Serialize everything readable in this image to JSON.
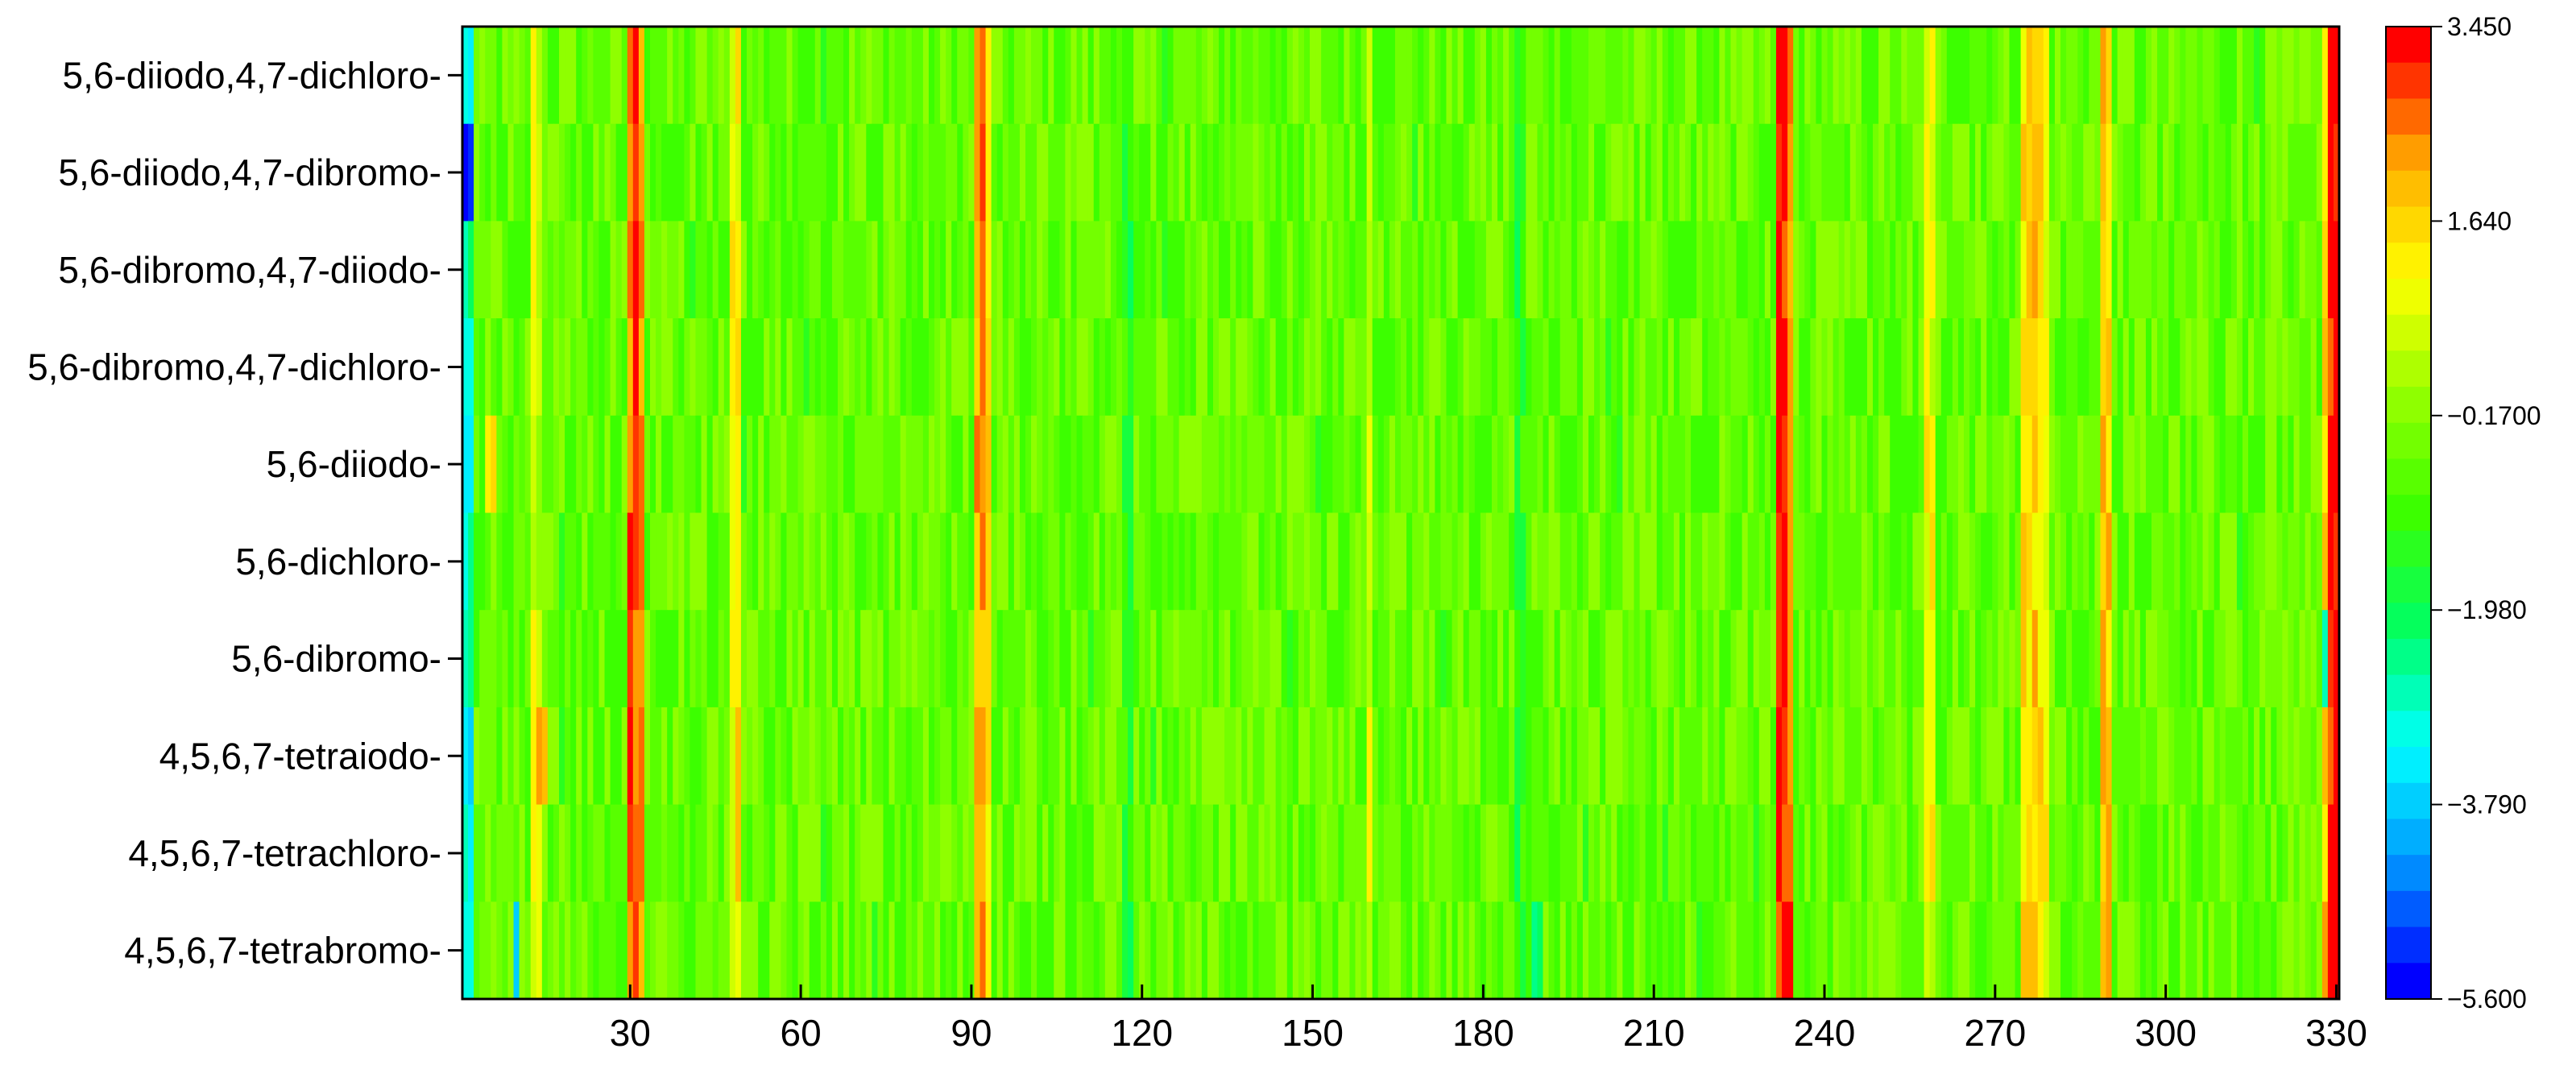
{
  "chart_data": {
    "type": "heatmap",
    "x_range": [
      1,
      330
    ],
    "x_ticks": [
      30,
      60,
      90,
      120,
      150,
      180,
      210,
      240,
      270,
      300,
      330
    ],
    "rows": [
      "5,6-diiodo,4,7-dichloro-",
      "5,6-diiodo,4,7-dibromo-",
      "5,6-dibromo,4,7-diiodo-",
      "5,6-dibromo,4,7-dichloro-",
      "5,6-diiodo-",
      "5,6-dichloro-",
      "5,6-dibromo-",
      "4,5,6,7-tetraiodo-",
      "4,5,6,7-tetrachloro-",
      "4,5,6,7-tetrabromo-"
    ],
    "baseline_value": -0.6,
    "column_features": [
      {
        "x": 1,
        "value": -3.2
      },
      {
        "x": 2,
        "value": -3.0
      },
      {
        "x": 13,
        "value": 0.8
      },
      {
        "x": 14,
        "value": 0.6
      },
      {
        "x": 30,
        "value": 2.7
      },
      {
        "x": 31,
        "value": 2.9
      },
      {
        "x": 32,
        "value": 2.2
      },
      {
        "x": 48,
        "value": 1.2
      },
      {
        "x": 49,
        "value": 1.4
      },
      {
        "x": 91,
        "value": 1.9
      },
      {
        "x": 92,
        "value": 2.3
      },
      {
        "x": 93,
        "value": 1.6
      },
      {
        "x": 117,
        "value": -1.4
      },
      {
        "x": 118,
        "value": -1.6
      },
      {
        "x": 160,
        "value": 0.8
      },
      {
        "x": 186,
        "value": -1.5
      },
      {
        "x": 187,
        "value": -1.3
      },
      {
        "x": 232,
        "value": 3.1
      },
      {
        "x": 233,
        "value": 3.3
      },
      {
        "x": 234,
        "value": 2.6
      },
      {
        "x": 258,
        "value": 0.9
      },
      {
        "x": 259,
        "value": 1.0
      },
      {
        "x": 275,
        "value": 1.4
      },
      {
        "x": 276,
        "value": 1.5
      },
      {
        "x": 277,
        "value": 1.6
      },
      {
        "x": 278,
        "value": 1.5
      },
      {
        "x": 279,
        "value": 1.3
      },
      {
        "x": 289,
        "value": 2.0
      },
      {
        "x": 290,
        "value": 1.8
      },
      {
        "x": 328,
        "value": 1.8
      },
      {
        "x": 329,
        "value": 3.2
      },
      {
        "x": 330,
        "value": 3.4
      }
    ],
    "cell_features": [
      {
        "row": "5,6-diiodo,4,7-dibromo-",
        "x": 1,
        "value": -5.4
      },
      {
        "row": "5,6-diiodo,4,7-dibromo-",
        "x": 2,
        "value": -5.0
      },
      {
        "row": "5,6-diiodo,4,7-dichloro-",
        "x": 1,
        "value": -3.0
      },
      {
        "row": "5,6-dibromo,4,7-diiodo-",
        "x": 2,
        "value": -2.2
      },
      {
        "row": "4,5,6,7-tetraiodo-",
        "x": 1,
        "value": -3.5
      },
      {
        "row": "4,5,6,7-tetraiodo-",
        "x": 14,
        "value": 2.2
      },
      {
        "row": "4,5,6,7-tetraiodo-",
        "x": 15,
        "value": 2.0
      },
      {
        "row": "4,5,6,7-tetrabromo-",
        "x": 10,
        "value": -3.6
      },
      {
        "row": "4,5,6,7-tetrabromo-",
        "x": 189,
        "value": -2.4
      },
      {
        "row": "4,5,6,7-tetrabromo-",
        "x": 190,
        "value": -2.2
      },
      {
        "row": "5,6-dibromo-",
        "x": 328,
        "value": -2.6
      },
      {
        "row": "5,6-diiodo-",
        "x": 232,
        "value": 3.3
      },
      {
        "row": "5,6-dibromo,4,7-dichloro-",
        "x": 232,
        "value": 3.4
      },
      {
        "row": "4,5,6,7-tetraiodo-",
        "x": 232,
        "value": 3.4
      },
      {
        "row": "4,5,6,7-tetraiodo-",
        "x": 330,
        "value": 3.45
      },
      {
        "row": "5,6-diiodo-",
        "x": 5,
        "value": 1.4
      },
      {
        "row": "5,6-diiodo-",
        "x": 6,
        "value": 1.6
      }
    ],
    "colorbar": {
      "min": -5.6,
      "max": 3.45,
      "tick_labels": [
        "3.450",
        "1.640",
        "−0.1700",
        "−1.980",
        "−3.790",
        "−5.600"
      ],
      "tick_values": [
        3.45,
        1.64,
        -0.17,
        -1.98,
        -3.79,
        -5.6
      ],
      "colors": [
        "#0000ff",
        "#0096ff",
        "#00ffff",
        "#00ff64",
        "#3cff00",
        "#96ff00",
        "#ffff00",
        "#ffaa00",
        "#ff0000"
      ]
    },
    "title": "",
    "xlabel": "",
    "ylabel": ""
  }
}
